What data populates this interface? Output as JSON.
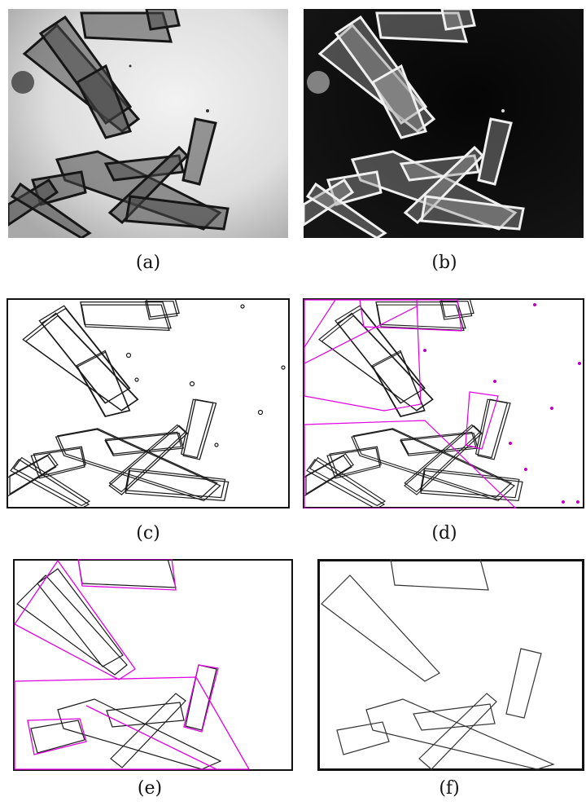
{
  "figure": {
    "panels": [
      {
        "id": "a",
        "caption": "(a)",
        "kind": "brightfield-micrograph"
      },
      {
        "id": "b",
        "caption": "(b)",
        "kind": "inverted-micrograph"
      },
      {
        "id": "c",
        "caption": "(c)",
        "kind": "edge-map"
      },
      {
        "id": "d",
        "caption": "(d)",
        "kind": "edge-map-with-convex-hulls"
      },
      {
        "id": "e",
        "caption": "(e)",
        "kind": "filtered-edges-with-convex-hulls"
      },
      {
        "id": "f",
        "caption": "(f)",
        "kind": "final-contours"
      }
    ],
    "colors": {
      "edge": "#1a1a1a",
      "hull": "#e000e0",
      "micro_bg_light": "#dcdcdc",
      "micro_bg_dark": "#050505"
    }
  }
}
